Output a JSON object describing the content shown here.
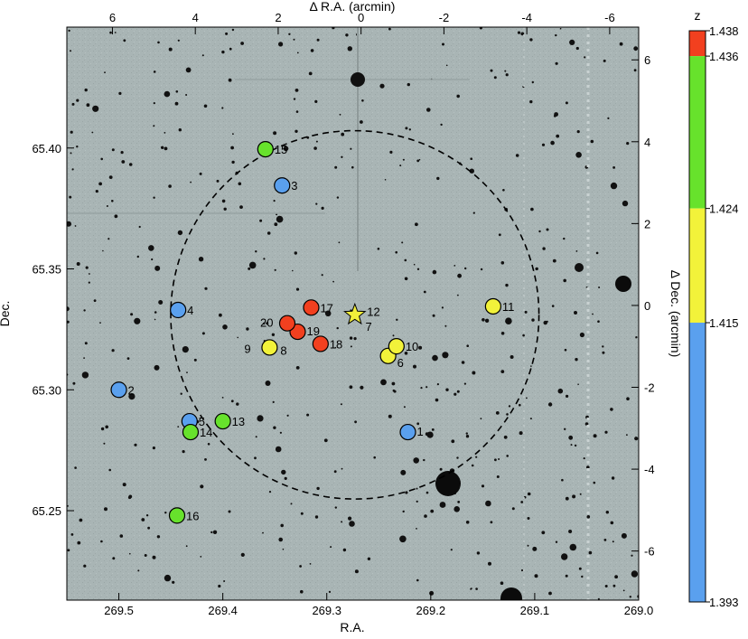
{
  "chart_data": {
    "type": "scatter",
    "xlabel_bottom": "R.A.",
    "ylabel_left": "Dec.",
    "xlabel_top": "Δ R.A. (arcmin)",
    "ylabel_right": "Δ Dec. (arcmin)",
    "colorbar_title": "z",
    "xlim": [
      269.55,
      269.0
    ],
    "ylim": [
      65.213,
      65.45
    ],
    "x_ticks": [
      269.5,
      269.4,
      269.3,
      269.2,
      269.1,
      269.0
    ],
    "x_tick_labels": [
      "269.5",
      "269.4",
      "269.3",
      "269.2",
      "269.1",
      "269.0"
    ],
    "y_ticks": [
      65.25,
      65.3,
      65.35,
      65.4
    ],
    "y_tick_labels": [
      "65.25",
      "65.30",
      "65.35",
      "65.40"
    ],
    "top_ticks": [
      6,
      4,
      2,
      0,
      -2,
      -4,
      -6
    ],
    "top_tick_labels": [
      "6",
      "4",
      "2",
      "0",
      "-2",
      "-4",
      "-6"
    ],
    "top_lim": [
      7.1,
      -6.7
    ],
    "right_ticks": [
      6,
      4,
      2,
      0,
      -2,
      -4,
      -6
    ],
    "right_tick_labels": [
      "6",
      "4",
      "2",
      "0",
      "-2",
      "-4",
      "-6"
    ],
    "right_lim": [
      -7.2,
      6.8
    ],
    "center": {
      "ra": 269.273,
      "dec": 65.331,
      "marker": "star",
      "color": "#f2ef3a"
    },
    "circle_radius_arcmin": 4.5,
    "colorbar": {
      "range": [
        1.393,
        1.438
      ],
      "tick_labels": [
        "1.438",
        "1.436",
        "1.424",
        "1.415",
        "1.393"
      ],
      "segments": [
        {
          "from": 1.436,
          "to": 1.438,
          "color": "#f2401f"
        },
        {
          "from": 1.424,
          "to": 1.436,
          "color": "#67e22c"
        },
        {
          "from": 1.415,
          "to": 1.424,
          "color": "#f2f23a"
        },
        {
          "from": 1.393,
          "to": 1.415,
          "color": "#5aa0ee"
        }
      ]
    },
    "points": [
      {
        "id": "1",
        "ra": 269.222,
        "dec": 65.2825,
        "color": "#5aa0ee"
      },
      {
        "id": "2",
        "ra": 269.5,
        "dec": 65.3,
        "color": "#5aa0ee"
      },
      {
        "id": "3",
        "ra": 269.343,
        "dec": 65.3845,
        "color": "#5aa0ee"
      },
      {
        "id": "4",
        "ra": 269.443,
        "dec": 65.333,
        "color": "#5aa0ee"
      },
      {
        "id": "5",
        "ra": 269.432,
        "dec": 65.287,
        "color": "#5aa0ee"
      },
      {
        "id": "6",
        "ra": 269.241,
        "dec": 65.314,
        "color": "#f2f23a"
      },
      {
        "id": "7",
        "ra": 269.268,
        "dec": 65.33,
        "color": "#f2f23a"
      },
      {
        "id": "8",
        "ra": 269.355,
        "dec": 65.3175,
        "color": "#f2f23a"
      },
      {
        "id": "9",
        "ra": 269.355,
        "dec": 65.3175,
        "color": "#f2f23a"
      },
      {
        "id": "10",
        "ra": 269.233,
        "dec": 65.318,
        "color": "#f2f23a"
      },
      {
        "id": "11",
        "ra": 269.14,
        "dec": 65.3345,
        "color": "#f2f23a"
      },
      {
        "id": "12",
        "ra": 269.27,
        "dec": 65.332,
        "color": "#f2f23a"
      },
      {
        "id": "13",
        "ra": 269.4,
        "dec": 65.287,
        "color": "#67e22c"
      },
      {
        "id": "14",
        "ra": 269.431,
        "dec": 65.2825,
        "color": "#67e22c"
      },
      {
        "id": "15",
        "ra": 269.359,
        "dec": 65.3995,
        "color": "#67e22c"
      },
      {
        "id": "16",
        "ra": 269.444,
        "dec": 65.248,
        "color": "#67e22c"
      },
      {
        "id": "17",
        "ra": 269.315,
        "dec": 65.334,
        "color": "#f2401f"
      },
      {
        "id": "18",
        "ra": 269.306,
        "dec": 65.319,
        "color": "#f2401f"
      },
      {
        "id": "19",
        "ra": 269.328,
        "dec": 65.324,
        "color": "#f2401f"
      },
      {
        "id": "20",
        "ra": 269.338,
        "dec": 65.3275,
        "color": "#f2401f"
      }
    ]
  }
}
